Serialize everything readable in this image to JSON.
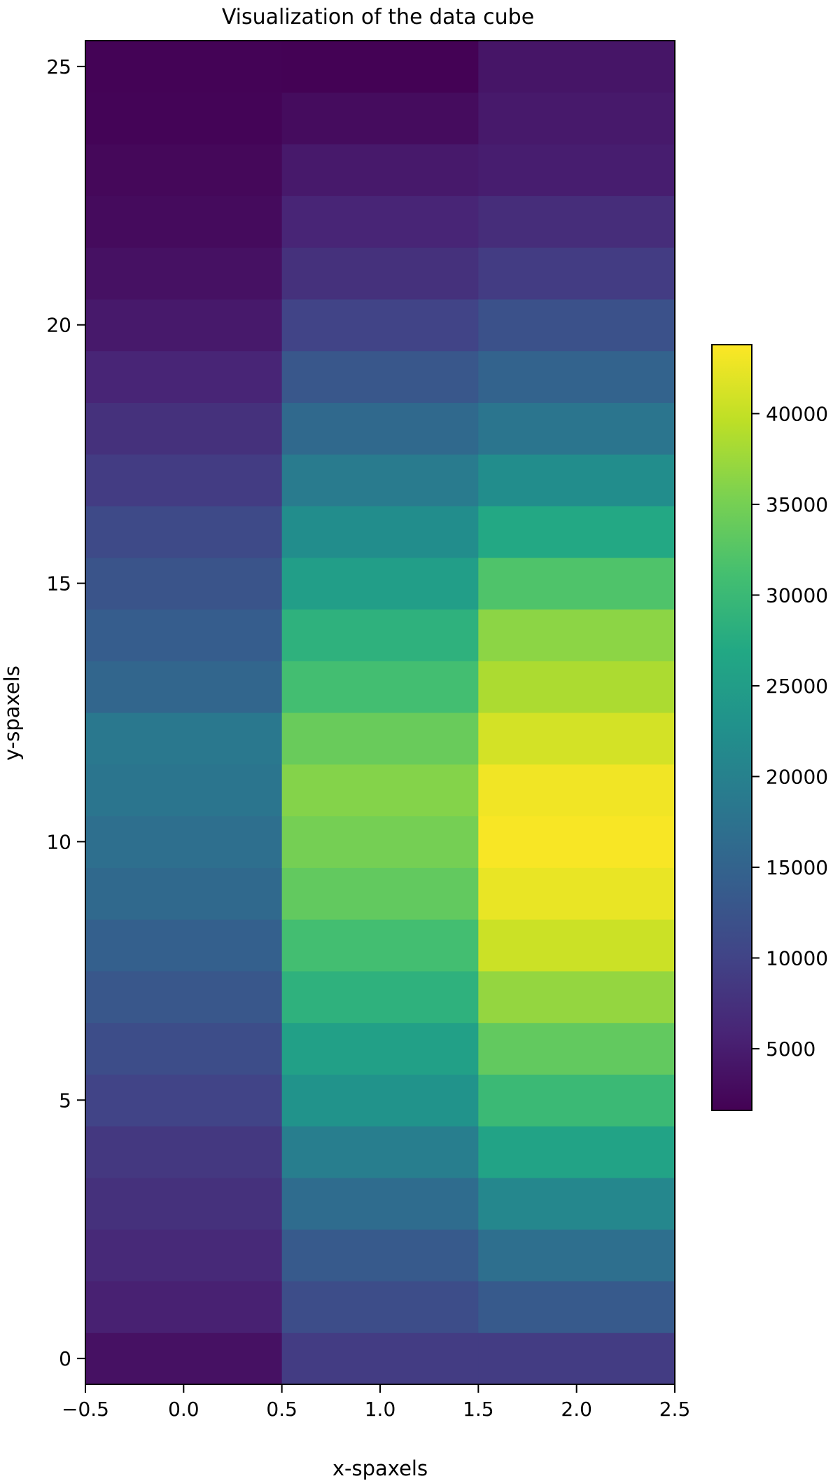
{
  "chart_data": {
    "type": "heatmap",
    "title": "Visualization of the data cube",
    "xlabel": "x-spaxels",
    "ylabel": "y-spaxels",
    "xlim": [
      -0.5,
      2.5
    ],
    "ylim": [
      -0.5,
      25.5
    ],
    "x_ticks": [
      -0.5,
      0.0,
      0.5,
      1.0,
      1.5,
      2.0,
      2.5
    ],
    "x_tick_labels": [
      "−0.5",
      "0.0",
      "0.5",
      "1.0",
      "1.5",
      "2.0",
      "2.5"
    ],
    "y_ticks": [
      0,
      5,
      10,
      15,
      20,
      25
    ],
    "y_tick_labels": [
      "0",
      "5",
      "10",
      "15",
      "20",
      "25"
    ],
    "colormap": "viridis",
    "colorbar": {
      "min": 1600,
      "max": 43800,
      "ticks": [
        5000,
        10000,
        15000,
        20000,
        25000,
        30000,
        35000,
        40000
      ],
      "tick_labels": [
        "5000",
        "10000",
        "15000",
        "20000",
        "25000",
        "30000",
        "35000",
        "40000"
      ]
    },
    "rows_y": [
      0,
      1,
      2,
      3,
      4,
      5,
      6,
      7,
      8,
      9,
      10,
      11,
      12,
      13,
      14,
      15,
      16,
      17,
      18,
      19,
      20,
      21,
      22,
      23,
      24,
      25
    ],
    "columns": [
      {
        "x": 0,
        "values": [
          3500,
          5500,
          6500,
          7500,
          8500,
          10000,
          11500,
          13000,
          14500,
          16000,
          17000,
          18000,
          18500,
          15500,
          14000,
          12500,
          11000,
          9000,
          7500,
          6000,
          4500,
          3500,
          2800,
          2400,
          2000,
          1800
        ]
      },
      {
        "x": 1,
        "values": [
          9000,
          11500,
          13500,
          16500,
          19500,
          23000,
          25500,
          28500,
          31000,
          33500,
          35000,
          36000,
          34000,
          31000,
          28500,
          25000,
          22000,
          19000,
          16000,
          13000,
          10000,
          7500,
          6000,
          4500,
          2900,
          1700
        ]
      },
      {
        "x": 2,
        "values": [
          9000,
          13500,
          17000,
          21000,
          26000,
          30000,
          33500,
          37000,
          40500,
          42500,
          43500,
          43000,
          41000,
          38500,
          36500,
          32000,
          27000,
          22000,
          18000,
          15000,
          12000,
          9000,
          7000,
          5000,
          4500,
          4000
        ]
      }
    ]
  }
}
